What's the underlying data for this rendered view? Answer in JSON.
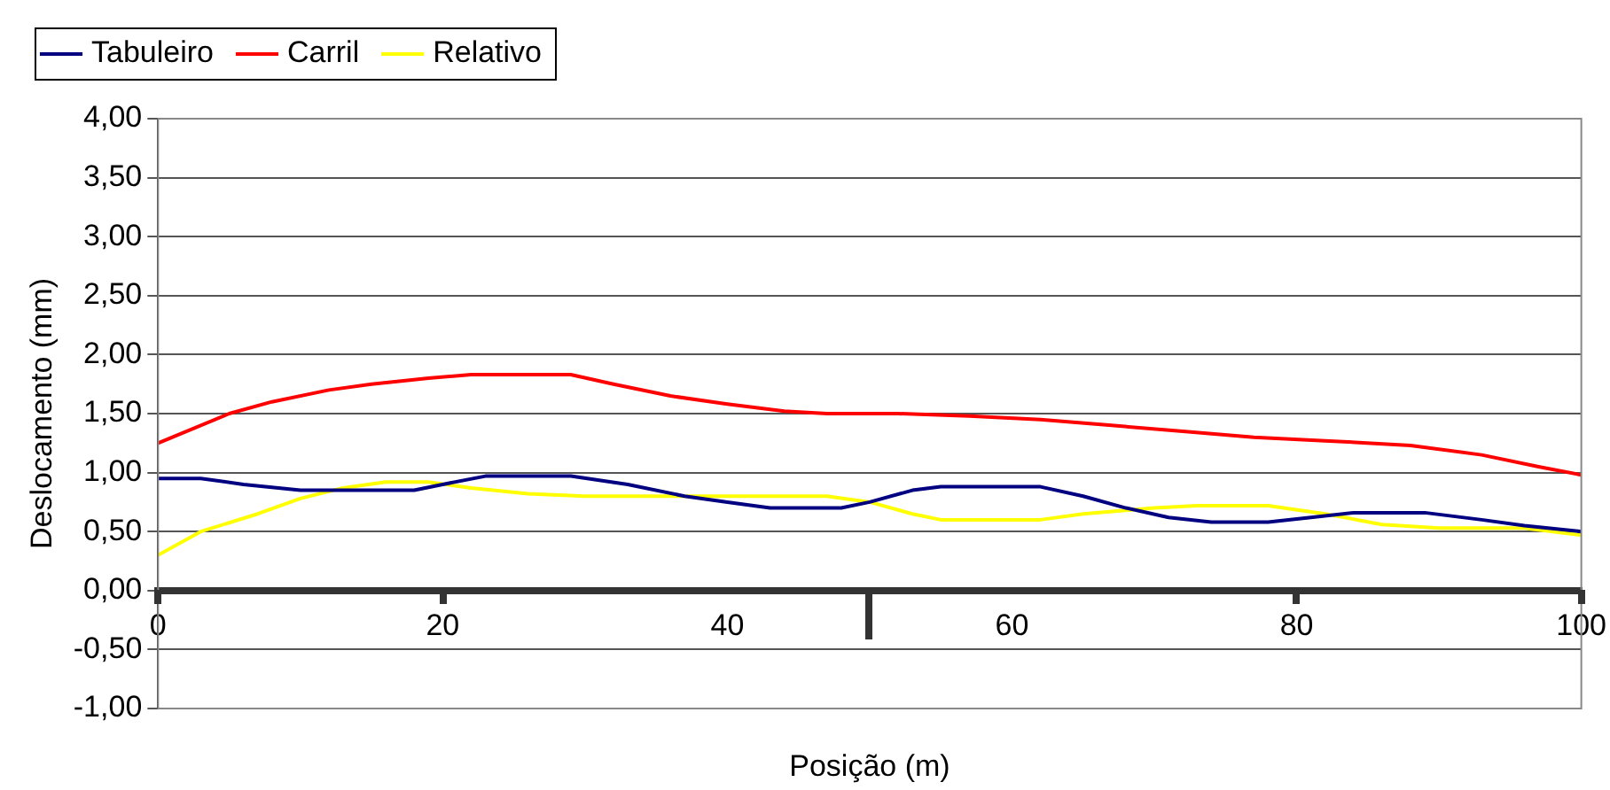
{
  "chart_data": {
    "type": "line",
    "xlabel": "Posição (m)",
    "ylabel": "Deslocamento (mm)",
    "xlim": [
      0,
      100
    ],
    "xticks": [
      0,
      20,
      40,
      60,
      80,
      100
    ],
    "ylim": [
      -1,
      4
    ],
    "yticks": [
      {
        "value": -1,
        "label": "-1,00"
      },
      {
        "value": -0.5,
        "label": "-0,50"
      },
      {
        "value": 0,
        "label": "0,00"
      },
      {
        "value": 0.5,
        "label": "0,50"
      },
      {
        "value": 1,
        "label": "1,00"
      },
      {
        "value": 1.5,
        "label": "1,50"
      },
      {
        "value": 2,
        "label": "2,00"
      },
      {
        "value": 2.5,
        "label": "2,50"
      },
      {
        "value": 3,
        "label": "3,00"
      },
      {
        "value": 3.5,
        "label": "3,50"
      },
      {
        "value": 4,
        "label": "4,00"
      }
    ],
    "grid": "y",
    "legend": "top left",
    "marker": "none",
    "line_style": "solid",
    "series": [
      {
        "name": "Tabuleiro",
        "color": "#000080",
        "x": [
          0,
          3,
          6,
          10,
          18,
          20,
          23,
          29,
          33,
          37,
          40,
          43,
          48,
          50,
          53,
          55,
          62,
          65,
          68,
          71,
          74,
          78,
          81,
          84,
          89,
          93,
          96,
          100
        ],
        "values": [
          0.95,
          0.95,
          0.9,
          0.85,
          0.85,
          0.9,
          0.97,
          0.97,
          0.9,
          0.8,
          0.75,
          0.7,
          0.7,
          0.75,
          0.85,
          0.88,
          0.88,
          0.8,
          0.7,
          0.62,
          0.58,
          0.58,
          0.62,
          0.66,
          0.66,
          0.6,
          0.55,
          0.5
        ]
      },
      {
        "name": "Carril",
        "color": "#ff0000",
        "x": [
          0,
          5,
          8,
          12,
          15,
          19,
          22,
          29,
          32,
          36,
          40,
          44,
          47,
          52,
          57,
          62,
          67,
          72,
          77,
          82,
          88,
          93,
          97,
          100
        ],
        "values": [
          1.25,
          1.5,
          1.6,
          1.7,
          1.75,
          1.8,
          1.83,
          1.83,
          1.75,
          1.65,
          1.58,
          1.52,
          1.5,
          1.5,
          1.48,
          1.45,
          1.4,
          1.35,
          1.3,
          1.27,
          1.23,
          1.15,
          1.05,
          0.98
        ]
      },
      {
        "name": "Relativo",
        "color": "#ffff00",
        "x": [
          0,
          3,
          7,
          10,
          13,
          16,
          19,
          22,
          26,
          30,
          34,
          38,
          47,
          50,
          53,
          55,
          62,
          65,
          70,
          73,
          78,
          82,
          86,
          90,
          96,
          98,
          100
        ],
        "values": [
          0.3,
          0.5,
          0.65,
          0.78,
          0.87,
          0.92,
          0.92,
          0.87,
          0.82,
          0.8,
          0.8,
          0.8,
          0.8,
          0.75,
          0.65,
          0.6,
          0.6,
          0.65,
          0.7,
          0.72,
          0.72,
          0.65,
          0.56,
          0.53,
          0.53,
          0.5,
          0.47
        ]
      }
    ]
  }
}
